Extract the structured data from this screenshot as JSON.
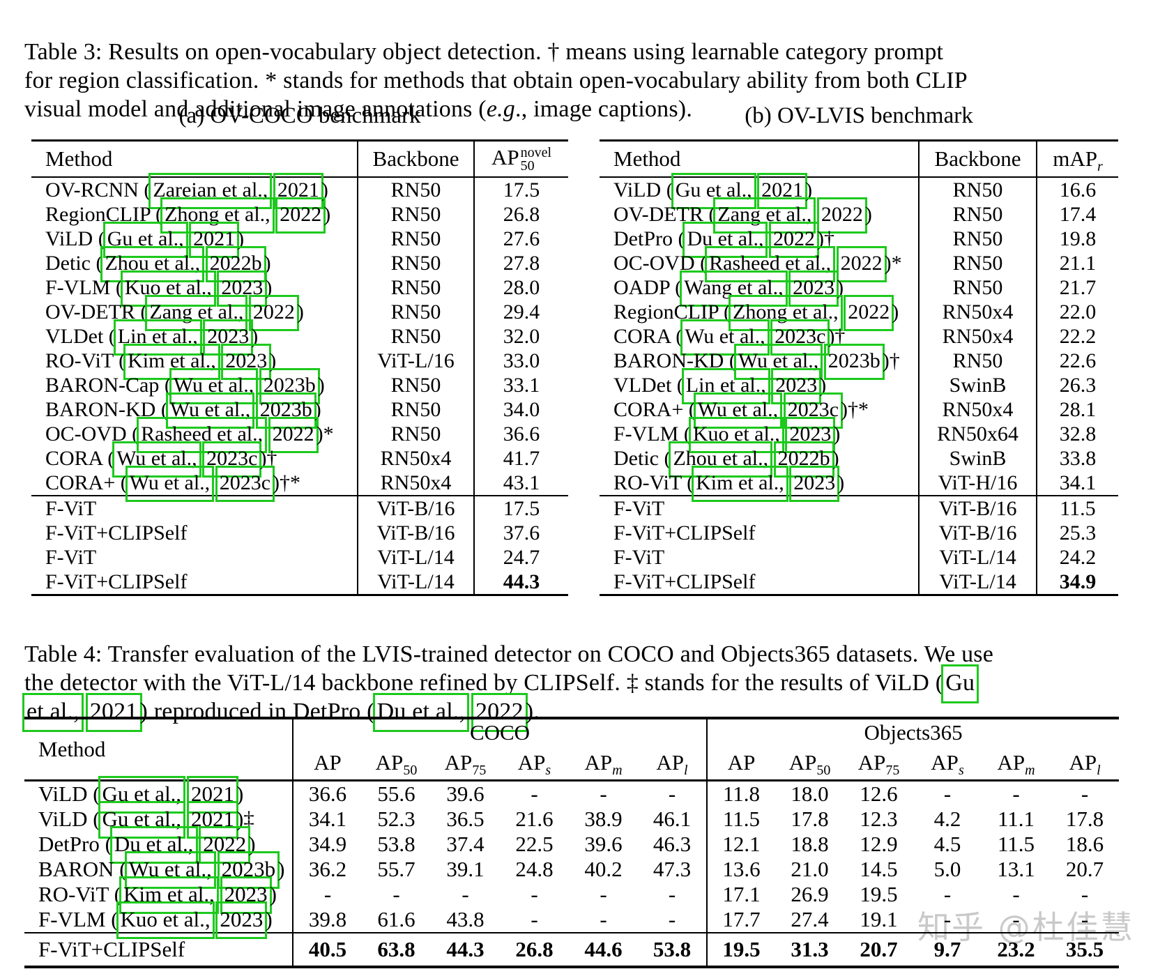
{
  "colors": {
    "citation_box": "#1dc91d",
    "watermark_text": "#c9c9c9",
    "text": "#000000",
    "background": "#ffffff"
  },
  "table3": {
    "caption_parts": [
      {
        "t": "Table 3: Results on open-vocabulary object detection. † means using learnable category prompt"
      },
      {
        "br": true
      },
      {
        "t": "for region classification. * stands for methods that obtain open-vocabulary ability from both CLIP"
      },
      {
        "br": true
      },
      {
        "t": "visual model and additional image annotations ("
      },
      {
        "t": "e.g",
        "i": true
      },
      {
        "t": "., image captions)."
      }
    ],
    "panels": [
      {
        "subcaption": "(a) OV-COCO benchmark",
        "columns": {
          "method": "Method",
          "backbone": "Backbone",
          "metric": {
            "base": "AP",
            "sup": "novel",
            "sub": "50"
          }
        },
        "rows": [
          {
            "method": "OV-RCNN",
            "cite_author": "Zareian et al.,",
            "cite_year": "2021",
            "suffix": "",
            "backbone": "RN50",
            "score": "17.5",
            "bold": false
          },
          {
            "method": "RegionCLIP",
            "cite_author": "Zhong et al.,",
            "cite_year": "2022",
            "suffix": "",
            "backbone": "RN50",
            "score": "26.8",
            "bold": false
          },
          {
            "method": "ViLD",
            "cite_author": "Gu et al.,",
            "cite_year": "2021",
            "suffix": "",
            "backbone": "RN50",
            "score": "27.6",
            "bold": false
          },
          {
            "method": "Detic",
            "cite_author": "Zhou et al.,",
            "cite_year": "2022b",
            "suffix": "",
            "backbone": "RN50",
            "score": "27.8",
            "bold": false
          },
          {
            "method": "F-VLM",
            "cite_author": "Kuo et al.,",
            "cite_year": "2023",
            "suffix": "",
            "backbone": "RN50",
            "score": "28.0",
            "bold": false
          },
          {
            "method": "OV-DETR",
            "cite_author": "Zang et al.,",
            "cite_year": "2022",
            "suffix": "",
            "backbone": "RN50",
            "score": "29.4",
            "bold": false
          },
          {
            "method": "VLDet",
            "cite_author": "Lin et al.,",
            "cite_year": "2023",
            "suffix": "",
            "backbone": "RN50",
            "score": "32.0",
            "bold": false
          },
          {
            "method": "RO-ViT",
            "cite_author": "Kim et al.,",
            "cite_year": "2023",
            "suffix": "",
            "backbone": "ViT-L/16",
            "score": "33.0",
            "bold": false
          },
          {
            "method": "BARON-Cap",
            "cite_author": "Wu et al.,",
            "cite_year": "2023b",
            "suffix": "",
            "backbone": "RN50",
            "score": "33.1",
            "bold": false
          },
          {
            "method": "BARON-KD",
            "cite_author": "Wu et al.,",
            "cite_year": "2023b",
            "suffix": "",
            "backbone": "RN50",
            "score": "34.0",
            "bold": false
          },
          {
            "method": "OC-OVD",
            "cite_author": "Rasheed et al.,",
            "cite_year": "2022",
            "suffix": "*",
            "backbone": "RN50",
            "score": "36.6",
            "bold": false
          },
          {
            "method": "CORA",
            "cite_author": "Wu et al.,",
            "cite_year": "2023c",
            "suffix": "†",
            "backbone": "RN50x4",
            "score": "41.7",
            "bold": false
          },
          {
            "method": "CORA+",
            "cite_author": "Wu et al.,",
            "cite_year": "2023c",
            "suffix": "†*",
            "backbone": "RN50x4",
            "score": "43.1",
            "bold": false
          }
        ],
        "rows2": [
          {
            "method": "F-ViT",
            "cite_author": null,
            "cite_year": null,
            "suffix": "",
            "backbone": "ViT-B/16",
            "score": "17.5",
            "bold": false
          },
          {
            "method": "F-ViT+CLIPSelf",
            "cite_author": null,
            "cite_year": null,
            "suffix": "",
            "backbone": "ViT-B/16",
            "score": "37.6",
            "bold": false
          },
          {
            "method": "F-ViT",
            "cite_author": null,
            "cite_year": null,
            "suffix": "",
            "backbone": "ViT-L/14",
            "score": "24.7",
            "bold": false
          },
          {
            "method": "F-ViT+CLIPSelf",
            "cite_author": null,
            "cite_year": null,
            "suffix": "",
            "backbone": "ViT-L/14",
            "score": "44.3",
            "bold": true
          }
        ]
      },
      {
        "subcaption": "(b) OV-LVIS benchmark",
        "columns": {
          "method": "Method",
          "backbone": "Backbone",
          "metric": {
            "base": "mAP",
            "sup": "",
            "sub": "r"
          }
        },
        "rows": [
          {
            "method": "ViLD",
            "cite_author": "Gu et al.,",
            "cite_year": "2021",
            "suffix": "",
            "backbone": "RN50",
            "score": "16.6",
            "bold": false
          },
          {
            "method": "OV-DETR",
            "cite_author": "Zang et al.,",
            "cite_year": "2022",
            "suffix": "",
            "backbone": "RN50",
            "score": "17.4",
            "bold": false
          },
          {
            "method": "DetPro",
            "cite_author": "Du et al.,",
            "cite_year": "2022",
            "suffix": "†",
            "backbone": "RN50",
            "score": "19.8",
            "bold": false
          },
          {
            "method": "OC-OVD",
            "cite_author": "Rasheed et al.,",
            "cite_year": "2022",
            "suffix": "*",
            "backbone": "RN50",
            "score": "21.1",
            "bold": false
          },
          {
            "method": "OADP",
            "cite_author": "Wang et al.,",
            "cite_year": "2023",
            "suffix": "",
            "backbone": "RN50",
            "score": "21.7",
            "bold": false
          },
          {
            "method": "RegionCLIP",
            "cite_author": "Zhong et al.,",
            "cite_year": "2022",
            "suffix": "",
            "backbone": "RN50x4",
            "score": "22.0",
            "bold": false
          },
          {
            "method": "CORA",
            "cite_author": "Wu et al.,",
            "cite_year": "2023c",
            "suffix": "†",
            "backbone": "RN50x4",
            "score": "22.2",
            "bold": false
          },
          {
            "method": "BARON-KD",
            "cite_author": "Wu et al.,",
            "cite_year": "2023b",
            "suffix": "†",
            "backbone": "RN50",
            "score": "22.6",
            "bold": false
          },
          {
            "method": "VLDet",
            "cite_author": "Lin et al.,",
            "cite_year": "2023",
            "suffix": "",
            "backbone": "SwinB",
            "score": "26.3",
            "bold": false
          },
          {
            "method": "CORA+",
            "cite_author": "Wu et al.,",
            "cite_year": "2023c",
            "suffix": "†*",
            "backbone": "RN50x4",
            "score": "28.1",
            "bold": false
          },
          {
            "method": "F-VLM",
            "cite_author": "Kuo et al.,",
            "cite_year": "2023",
            "suffix": "",
            "backbone": "RN50x64",
            "score": "32.8",
            "bold": false
          },
          {
            "method": "Detic",
            "cite_author": "Zhou et al.,",
            "cite_year": "2022b",
            "suffix": "",
            "backbone": "SwinB",
            "score": "33.8",
            "bold": false
          },
          {
            "method": "RO-ViT",
            "cite_author": "Kim et al.,",
            "cite_year": "2023",
            "suffix": "",
            "backbone": "ViT-H/16",
            "score": "34.1",
            "bold": false
          }
        ],
        "rows2": [
          {
            "method": "F-ViT",
            "cite_author": null,
            "cite_year": null,
            "suffix": "",
            "backbone": "ViT-B/16",
            "score": "11.5",
            "bold": false
          },
          {
            "method": "F-ViT+CLIPSelf",
            "cite_author": null,
            "cite_year": null,
            "suffix": "",
            "backbone": "ViT-B/16",
            "score": "25.3",
            "bold": false
          },
          {
            "method": "F-ViT",
            "cite_author": null,
            "cite_year": null,
            "suffix": "",
            "backbone": "ViT-L/14",
            "score": "24.2",
            "bold": false
          },
          {
            "method": "F-ViT+CLIPSelf",
            "cite_author": null,
            "cite_year": null,
            "suffix": "",
            "backbone": "ViT-L/14",
            "score": "34.9",
            "bold": true
          }
        ]
      }
    ]
  },
  "table4": {
    "caption_parts": [
      {
        "t": "Table 4: Transfer evaluation of the LVIS-trained detector on COCO and Objects365 datasets. We use"
      },
      {
        "br": true
      },
      {
        "t": "the detector with the ViT-L/14 backbone refined by CLIPSelf. ‡ stands for the results of ViLD ("
      },
      {
        "t": "Gu",
        "box": true
      },
      {
        "br": true
      },
      {
        "t": "et al.,",
        "box": true
      },
      {
        "t": " "
      },
      {
        "t": "2021",
        "box": true
      },
      {
        "t": ") reproduced in DetPro ("
      },
      {
        "t": "Du et al.,",
        "box": true
      },
      {
        "t": " "
      },
      {
        "t": "2022",
        "box": true
      },
      {
        "t": ")."
      }
    ],
    "method_header": "Method",
    "groups": [
      {
        "label": "COCO"
      },
      {
        "label": "Objects365"
      }
    ],
    "subheaders": [
      {
        "base": "AP",
        "sub": ""
      },
      {
        "base": "AP",
        "sub": "50"
      },
      {
        "base": "AP",
        "sub": "75"
      },
      {
        "base": "AP",
        "sub": "s"
      },
      {
        "base": "AP",
        "sub": "m"
      },
      {
        "base": "AP",
        "sub": "l"
      }
    ],
    "rows": [
      {
        "method": "ViLD",
        "cite_author": "Gu et al.,",
        "cite_year": "2021",
        "suffix": "",
        "coco": [
          "36.6",
          "55.6",
          "39.6",
          "-",
          "-",
          "-"
        ],
        "objects365": [
          "11.8",
          "18.0",
          "12.6",
          "-",
          "-",
          "-"
        ],
        "bold": false
      },
      {
        "method": "ViLD",
        "cite_author": "Gu et al.,",
        "cite_year": "2021",
        "suffix": "‡",
        "coco": [
          "34.1",
          "52.3",
          "36.5",
          "21.6",
          "38.9",
          "46.1"
        ],
        "objects365": [
          "11.5",
          "17.8",
          "12.3",
          "4.2",
          "11.1",
          "17.8"
        ],
        "bold": false
      },
      {
        "method": "DetPro",
        "cite_author": "Du et al.,",
        "cite_year": "2022",
        "suffix": "",
        "coco": [
          "34.9",
          "53.8",
          "37.4",
          "22.5",
          "39.6",
          "46.3"
        ],
        "objects365": [
          "12.1",
          "18.8",
          "12.9",
          "4.5",
          "11.5",
          "18.6"
        ],
        "bold": false
      },
      {
        "method": "BARON",
        "cite_author": "Wu et al.,",
        "cite_year": "2023b",
        "suffix": "",
        "coco": [
          "36.2",
          "55.7",
          "39.1",
          "24.8",
          "40.2",
          "47.3"
        ],
        "objects365": [
          "13.6",
          "21.0",
          "14.5",
          "5.0",
          "13.1",
          "20.7"
        ],
        "bold": false
      },
      {
        "method": "RO-ViT",
        "cite_author": "Kim et al.,",
        "cite_year": "2023",
        "suffix": "",
        "coco": [
          "-",
          "-",
          "-",
          "-",
          "-",
          "-"
        ],
        "objects365": [
          "17.1",
          "26.9",
          "19.5",
          "-",
          "-",
          "-"
        ],
        "bold": false
      },
      {
        "method": "F-VLM",
        "cite_author": "Kuo et al.,",
        "cite_year": "2023",
        "suffix": "",
        "coco": [
          "39.8",
          "61.6",
          "43.8",
          "-",
          "-",
          "-"
        ],
        "objects365": [
          "17.7",
          "27.4",
          "19.1",
          "-",
          "-",
          "-"
        ],
        "bold": false
      },
      {
        "method": "F-ViT+CLIPSelf",
        "cite_author": null,
        "cite_year": null,
        "suffix": "",
        "coco": [
          "40.5",
          "63.8",
          "44.3",
          "26.8",
          "44.6",
          "53.8"
        ],
        "objects365": [
          "19.5",
          "31.3",
          "20.7",
          "9.7",
          "23.2",
          "35.5"
        ],
        "bold": true
      }
    ]
  },
  "watermark": {
    "text": "知乎 @杜佳慧"
  }
}
